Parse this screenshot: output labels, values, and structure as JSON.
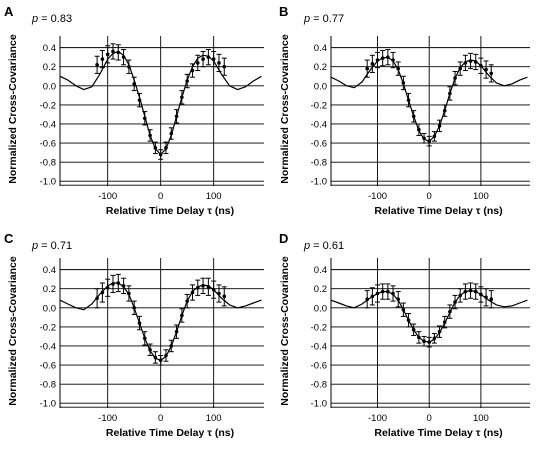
{
  "figure": {
    "panels": [
      "A",
      "B",
      "C",
      "D"
    ]
  },
  "chart_data": [
    {
      "panel": "A",
      "type": "line",
      "annotation": "p = 0.83",
      "p_value": "0.83",
      "xlabel": "Relative Time Delay τ (ns)",
      "ylabel": "Normalized Cross-Covariance",
      "xlim": [
        -190,
        195
      ],
      "ylim": [
        -1.05,
        0.48
      ],
      "xticks": [
        -100,
        0,
        100
      ],
      "yticks": [
        0.4,
        0.2,
        0.0,
        -0.2,
        -0.4,
        -0.6,
        -0.8,
        -1.0
      ],
      "ytick_labels": [
        "0.4",
        "0.2",
        "0.0",
        "-0.2",
        "-0.4",
        "-0.6",
        "-0.8",
        "-1.0"
      ],
      "grid": "horizontal",
      "curve": {
        "x": [
          -190,
          -175,
          -160,
          -145,
          -130,
          -115,
          -100,
          -90,
          -80,
          -70,
          -60,
          -50,
          -40,
          -30,
          -20,
          -10,
          0,
          10,
          20,
          30,
          40,
          50,
          60,
          70,
          80,
          90,
          100,
          115,
          130,
          145,
          160,
          175,
          190
        ],
        "y": [
          0.1,
          0.06,
          0.0,
          -0.04,
          -0.01,
          0.12,
          0.28,
          0.34,
          0.36,
          0.32,
          0.22,
          0.06,
          -0.12,
          -0.32,
          -0.52,
          -0.66,
          -0.72,
          -0.66,
          -0.52,
          -0.32,
          -0.12,
          0.06,
          0.2,
          0.29,
          0.32,
          0.31,
          0.26,
          0.12,
          0.0,
          -0.04,
          -0.01,
          0.05,
          0.1
        ]
      },
      "points": {
        "x": [
          -120,
          -110,
          -100,
          -90,
          -80,
          -70,
          -60,
          -50,
          -40,
          -30,
          -20,
          -10,
          0,
          10,
          20,
          30,
          40,
          50,
          60,
          70,
          80,
          90,
          100,
          110,
          120
        ],
        "y": [
          0.22,
          0.28,
          0.33,
          0.36,
          0.35,
          0.3,
          0.2,
          0.02,
          -0.15,
          -0.34,
          -0.52,
          -0.65,
          -0.72,
          -0.65,
          -0.5,
          -0.32,
          -0.12,
          0.05,
          0.16,
          0.24,
          0.28,
          0.3,
          0.28,
          0.24,
          0.2
        ],
        "err": [
          0.09,
          0.09,
          0.09,
          0.08,
          0.08,
          0.08,
          0.07,
          0.07,
          0.07,
          0.07,
          0.06,
          0.06,
          0.05,
          0.06,
          0.06,
          0.07,
          0.07,
          0.07,
          0.07,
          0.08,
          0.08,
          0.08,
          0.08,
          0.09,
          0.09
        ]
      }
    },
    {
      "panel": "B",
      "type": "line",
      "annotation": "p = 0.77",
      "p_value": "0.77",
      "xlabel": "Relative Time Delay τ (ns)",
      "ylabel": "Normalized Cross-Covariance",
      "xlim": [
        -190,
        195
      ],
      "ylim": [
        -1.05,
        0.48
      ],
      "xticks": [
        -100,
        0,
        100
      ],
      "yticks": [
        0.4,
        0.2,
        0.0,
        -0.2,
        -0.4,
        -0.6,
        -0.8,
        -1.0
      ],
      "ytick_labels": [
        "0.4",
        "0.2",
        "0.0",
        "-0.2",
        "-0.4",
        "-0.6",
        "-0.8",
        "-1.0"
      ],
      "grid": "horizontal",
      "curve": {
        "x": [
          -190,
          -175,
          -160,
          -145,
          -130,
          -115,
          -100,
          -90,
          -80,
          -70,
          -60,
          -50,
          -40,
          -30,
          -20,
          -10,
          0,
          10,
          20,
          30,
          40,
          50,
          60,
          70,
          80,
          90,
          100,
          115,
          130,
          145,
          160,
          175,
          190
        ],
        "y": [
          0.09,
          0.05,
          0.0,
          -0.02,
          0.04,
          0.16,
          0.26,
          0.29,
          0.3,
          0.26,
          0.17,
          0.02,
          -0.15,
          -0.32,
          -0.47,
          -0.56,
          -0.58,
          -0.53,
          -0.42,
          -0.26,
          -0.08,
          0.08,
          0.19,
          0.25,
          0.27,
          0.26,
          0.21,
          0.11,
          0.03,
          0.0,
          0.02,
          0.06,
          0.09
        ]
      },
      "points": {
        "x": [
          -120,
          -110,
          -100,
          -90,
          -80,
          -70,
          -60,
          -50,
          -40,
          -30,
          -20,
          -10,
          0,
          10,
          20,
          30,
          40,
          50,
          60,
          70,
          80,
          90,
          100,
          110,
          120
        ],
        "y": [
          0.18,
          0.23,
          0.27,
          0.29,
          0.3,
          0.27,
          0.18,
          0.03,
          -0.15,
          -0.32,
          -0.46,
          -0.55,
          -0.58,
          -0.53,
          -0.42,
          -0.26,
          -0.08,
          0.08,
          0.18,
          0.24,
          0.26,
          0.25,
          0.21,
          0.17,
          0.13
        ],
        "err": [
          0.09,
          0.09,
          0.08,
          0.08,
          0.08,
          0.08,
          0.07,
          0.07,
          0.07,
          0.06,
          0.06,
          0.05,
          0.05,
          0.05,
          0.06,
          0.06,
          0.07,
          0.07,
          0.07,
          0.08,
          0.08,
          0.08,
          0.08,
          0.09,
          0.09
        ]
      }
    },
    {
      "panel": "C",
      "type": "line",
      "annotation": "p = 0.71",
      "p_value": "0.71",
      "xlabel": "Relative Time Delay τ (ns)",
      "ylabel": "Normalized Cross-Covariance",
      "xlim": [
        -190,
        195
      ],
      "ylim": [
        -1.05,
        0.48
      ],
      "xticks": [
        -100,
        0,
        100
      ],
      "yticks": [
        0.4,
        0.2,
        0.0,
        -0.2,
        -0.4,
        -0.6,
        -0.8,
        -1.0
      ],
      "ytick_labels": [
        "0.4",
        "0.2",
        "0.0",
        "-0.2",
        "-0.4",
        "-0.6",
        "-0.8",
        "-1.0"
      ],
      "grid": "horizontal",
      "curve": {
        "x": [
          -190,
          -175,
          -160,
          -145,
          -130,
          -115,
          -100,
          -90,
          -80,
          -70,
          -60,
          -50,
          -40,
          -30,
          -20,
          -10,
          0,
          10,
          20,
          30,
          40,
          50,
          60,
          70,
          80,
          90,
          100,
          115,
          130,
          145,
          160,
          175,
          190
        ],
        "y": [
          0.08,
          0.04,
          0.0,
          -0.02,
          0.04,
          0.14,
          0.23,
          0.26,
          0.26,
          0.22,
          0.14,
          0.0,
          -0.16,
          -0.32,
          -0.45,
          -0.53,
          -0.55,
          -0.51,
          -0.4,
          -0.25,
          -0.08,
          0.07,
          0.17,
          0.22,
          0.24,
          0.23,
          0.19,
          0.1,
          0.03,
          0.0,
          0.02,
          0.05,
          0.08
        ]
      },
      "points": {
        "x": [
          -120,
          -110,
          -100,
          -90,
          -80,
          -70,
          -60,
          -50,
          -40,
          -30,
          -20,
          -10,
          0,
          10,
          20,
          30,
          40,
          50,
          60,
          70,
          80,
          90,
          100,
          110,
          120
        ],
        "y": [
          0.1,
          0.16,
          0.21,
          0.25,
          0.26,
          0.23,
          0.15,
          0.0,
          -0.16,
          -0.32,
          -0.44,
          -0.52,
          -0.55,
          -0.5,
          -0.4,
          -0.25,
          -0.08,
          0.07,
          0.16,
          0.21,
          0.23,
          0.22,
          0.19,
          0.15,
          0.12
        ],
        "err": [
          0.1,
          0.1,
          0.09,
          0.09,
          0.09,
          0.08,
          0.08,
          0.07,
          0.07,
          0.07,
          0.06,
          0.06,
          0.05,
          0.06,
          0.06,
          0.07,
          0.07,
          0.07,
          0.08,
          0.08,
          0.08,
          0.09,
          0.09,
          0.09,
          0.1
        ]
      }
    },
    {
      "panel": "D",
      "type": "line",
      "annotation": "p = 0.61",
      "p_value": "0.61",
      "xlabel": "Relative Time Delay τ (ns)",
      "ylabel": "Normalized Cross-Covariance",
      "xlim": [
        -190,
        195
      ],
      "ylim": [
        -1.05,
        0.48
      ],
      "xticks": [
        -100,
        0,
        100
      ],
      "yticks": [
        0.4,
        0.2,
        0.0,
        -0.2,
        -0.4,
        -0.6,
        -0.8,
        -1.0
      ],
      "ytick_labels": [
        "0.4",
        "0.2",
        "0.0",
        "-0.2",
        "-0.4",
        "-0.6",
        "-0.8",
        "-1.0"
      ],
      "grid": "horizontal",
      "curve": {
        "x": [
          -190,
          -175,
          -160,
          -145,
          -130,
          -115,
          -100,
          -90,
          -80,
          -70,
          -60,
          -50,
          -40,
          -30,
          -20,
          -10,
          0,
          10,
          20,
          30,
          40,
          50,
          60,
          70,
          80,
          90,
          100,
          115,
          130,
          145,
          160,
          175,
          190
        ],
        "y": [
          0.08,
          0.05,
          0.02,
          0.0,
          0.04,
          0.1,
          0.15,
          0.17,
          0.17,
          0.14,
          0.08,
          -0.02,
          -0.13,
          -0.23,
          -0.31,
          -0.35,
          -0.36,
          -0.33,
          -0.26,
          -0.16,
          -0.05,
          0.06,
          0.13,
          0.17,
          0.18,
          0.17,
          0.14,
          0.08,
          0.03,
          0.01,
          0.02,
          0.05,
          0.08
        ]
      },
      "points": {
        "x": [
          -120,
          -110,
          -100,
          -90,
          -80,
          -70,
          -60,
          -50,
          -40,
          -30,
          -20,
          -10,
          0,
          10,
          20,
          30,
          40,
          50,
          60,
          70,
          80,
          90,
          100,
          110,
          120
        ],
        "y": [
          0.09,
          0.12,
          0.15,
          0.17,
          0.17,
          0.15,
          0.09,
          -0.02,
          -0.13,
          -0.23,
          -0.31,
          -0.35,
          -0.36,
          -0.32,
          -0.25,
          -0.15,
          -0.04,
          0.06,
          0.13,
          0.17,
          0.18,
          0.17,
          0.14,
          0.11,
          0.09
        ],
        "err": [
          0.09,
          0.09,
          0.09,
          0.08,
          0.08,
          0.08,
          0.08,
          0.07,
          0.07,
          0.06,
          0.06,
          0.05,
          0.05,
          0.05,
          0.06,
          0.06,
          0.07,
          0.07,
          0.07,
          0.08,
          0.08,
          0.08,
          0.08,
          0.09,
          0.09
        ]
      }
    }
  ]
}
